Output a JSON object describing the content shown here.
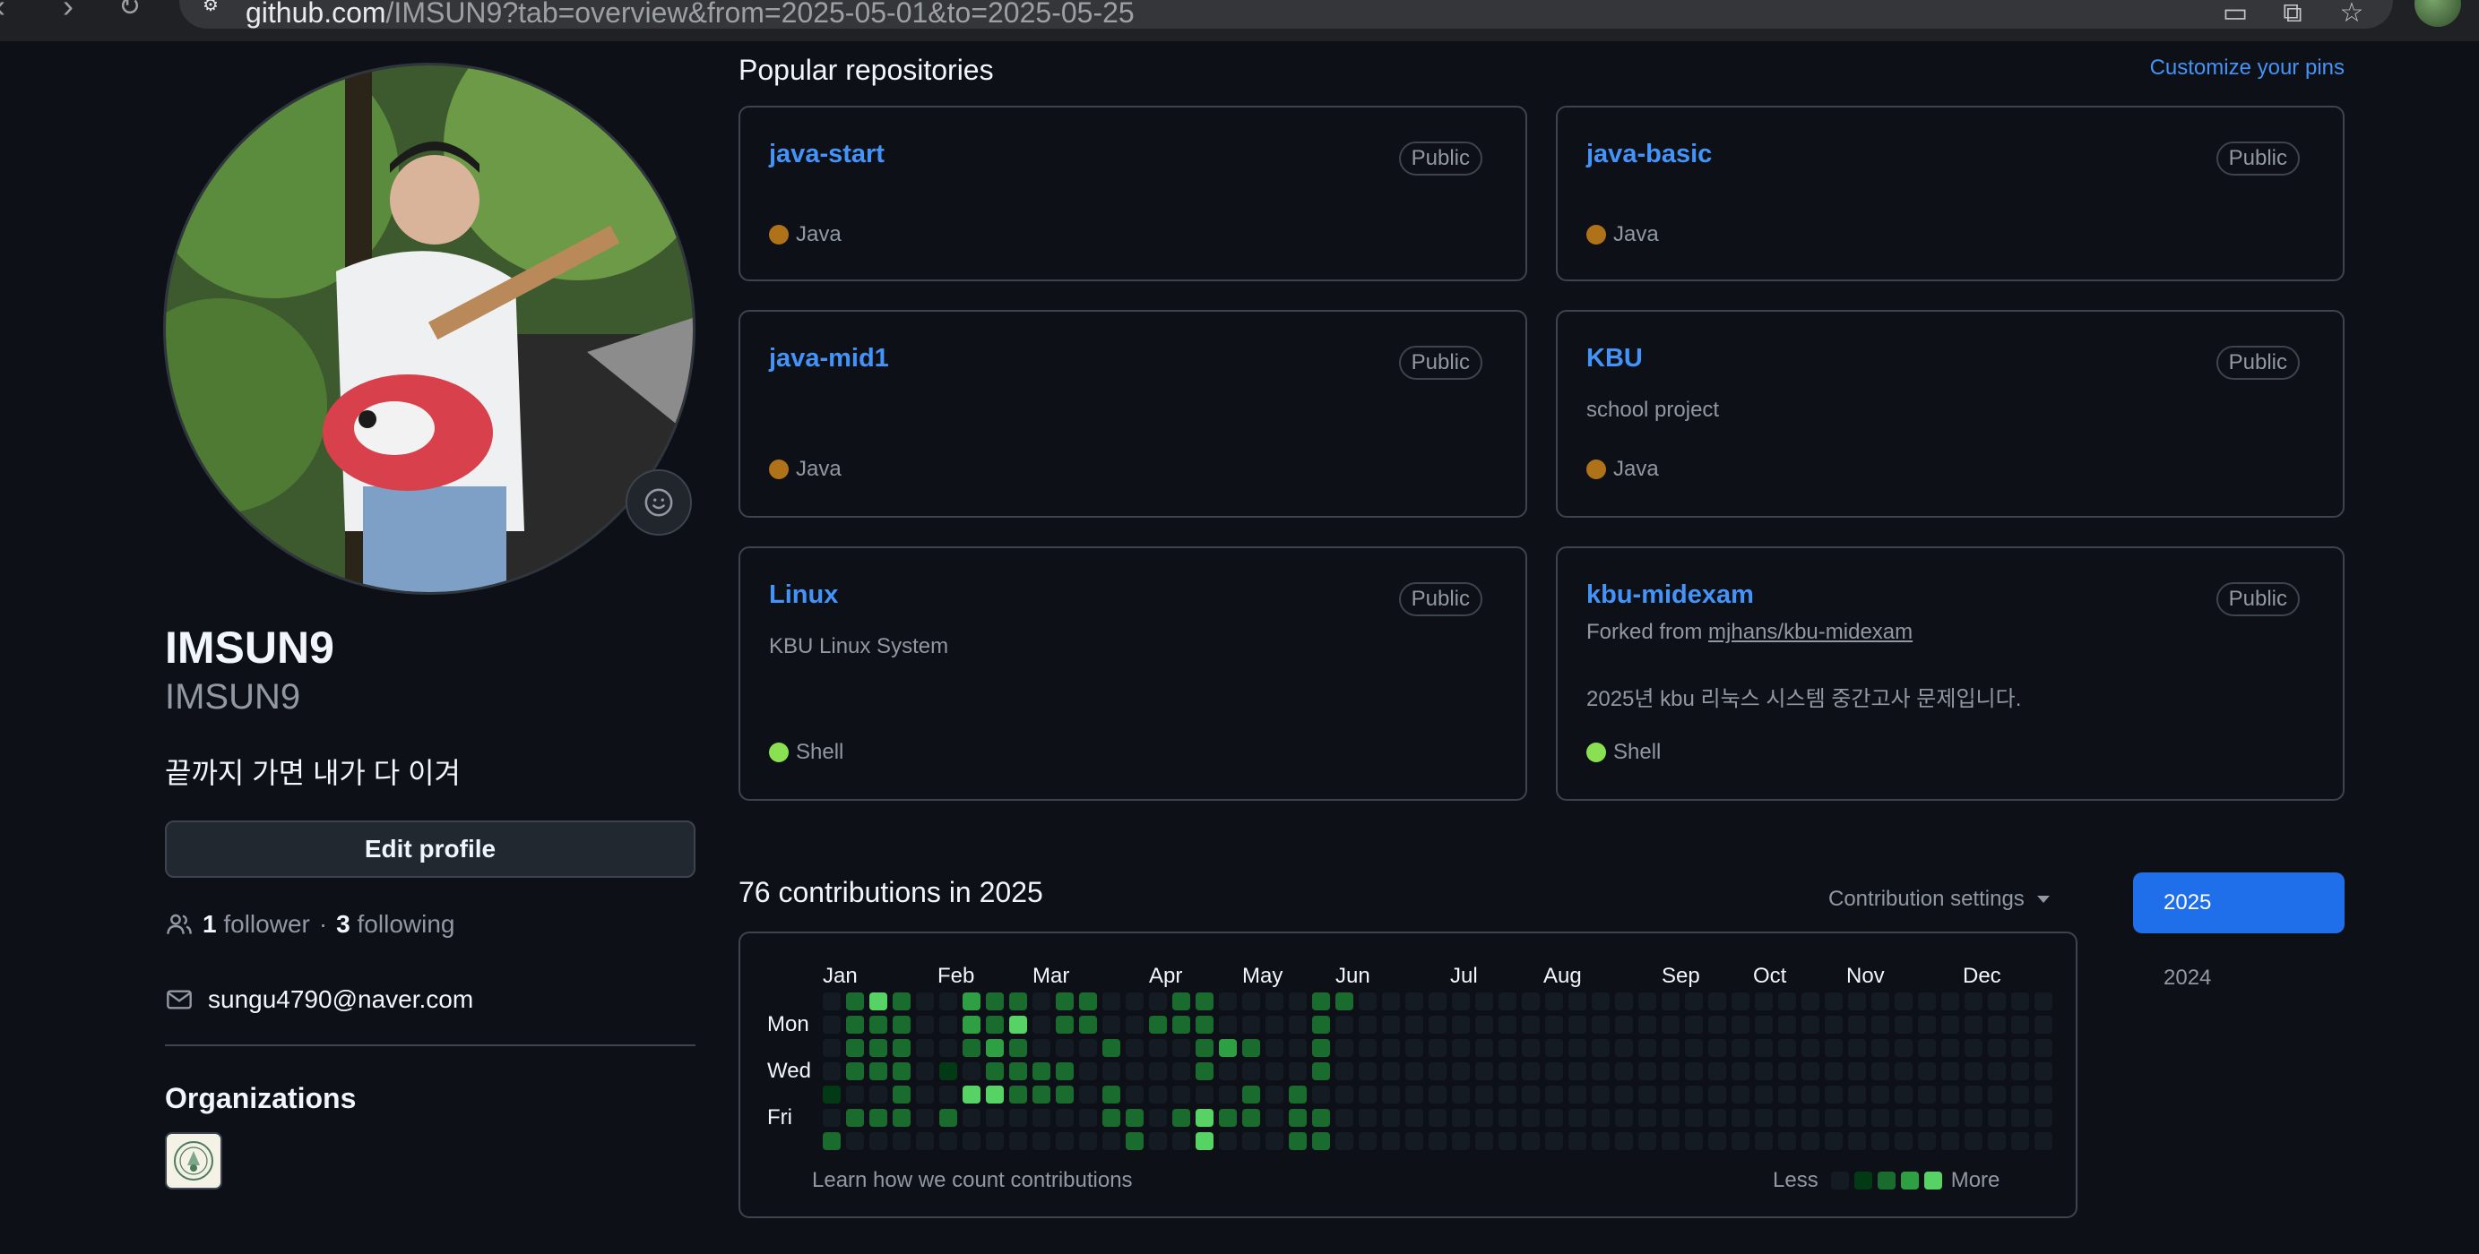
{
  "browser": {
    "url_host": "github.com",
    "url_path": "/IMSUN9?tab=overview&from=2025-05-01&to=2025-05-25"
  },
  "profile": {
    "name": "IMSUN9",
    "login": "IMSUN9",
    "bio": "끝까지 가면 내가 다 이겨",
    "edit_label": "Edit profile",
    "followers_count": "1",
    "followers_label": "follower",
    "separator": "·",
    "following_count": "3",
    "following_label": "following",
    "email": "sungu4790@naver.com",
    "organizations_title": "Organizations"
  },
  "popular": {
    "title": "Popular repositories",
    "customize_label": "Customize your pins",
    "repos": [
      {
        "name": "java-start",
        "visibility": "Public",
        "description": "",
        "language": "Java",
        "lang_color": "#b07219"
      },
      {
        "name": "java-basic",
        "visibility": "Public",
        "description": "",
        "language": "Java",
        "lang_color": "#b07219"
      },
      {
        "name": "java-mid1",
        "visibility": "Public",
        "description": "",
        "language": "Java",
        "lang_color": "#b07219"
      },
      {
        "name": "KBU",
        "visibility": "Public",
        "description": "school project",
        "language": "Java",
        "lang_color": "#b07219"
      },
      {
        "name": "Linux",
        "visibility": "Public",
        "description": "KBU Linux System",
        "language": "Shell",
        "lang_color": "#89e051"
      },
      {
        "name": "kbu-midexam",
        "visibility": "Public",
        "fork_prefix": "Forked from",
        "fork_source": "mjhans/kbu-midexam",
        "description": "2025년 kbu 리눅스 시스템 중간고사 문제입니다.",
        "language": "Shell",
        "lang_color": "#89e051"
      }
    ]
  },
  "contributions": {
    "title": "76 contributions in 2025",
    "settings_label": "Contribution settings",
    "years": [
      "2025",
      "2024"
    ],
    "months": [
      "Jan",
      "Feb",
      "Mar",
      "Apr",
      "May",
      "Jun",
      "Jul",
      "Aug",
      "Sep",
      "Oct",
      "Nov",
      "Dec"
    ],
    "day_labels": [
      "Mon",
      "Wed",
      "Fri"
    ],
    "learn_label": "Learn how we count contributions",
    "less_label": "Less",
    "more_label": "More",
    "level_colors": [
      "#151b23",
      "#033a16",
      "#196c2e",
      "#2ea043",
      "#56d364"
    ],
    "weeks": [
      [
        0,
        0,
        0,
        0,
        1,
        0,
        2
      ],
      [
        2,
        2,
        2,
        2,
        0,
        2,
        0
      ],
      [
        4,
        2,
        2,
        2,
        0,
        2,
        0
      ],
      [
        2,
        2,
        2,
        2,
        2,
        2,
        0
      ],
      [
        0,
        0,
        0,
        0,
        0,
        0,
        0
      ],
      [
        0,
        0,
        0,
        1,
        0,
        2,
        0
      ],
      [
        3,
        3,
        2,
        0,
        4,
        0,
        0
      ],
      [
        2,
        2,
        3,
        2,
        4,
        0,
        0
      ],
      [
        2,
        4,
        2,
        2,
        2,
        0,
        0
      ],
      [
        0,
        0,
        0,
        2,
        2,
        0,
        0
      ],
      [
        2,
        2,
        0,
        2,
        2,
        0,
        0
      ],
      [
        2,
        2,
        0,
        0,
        0,
        0,
        0
      ],
      [
        0,
        0,
        2,
        0,
        2,
        2,
        0
      ],
      [
        0,
        0,
        0,
        0,
        0,
        2,
        2
      ],
      [
        0,
        2,
        0,
        0,
        0,
        0,
        0
      ],
      [
        2,
        2,
        0,
        0,
        0,
        2,
        0
      ],
      [
        2,
        2,
        2,
        2,
        0,
        4,
        4
      ],
      [
        0,
        0,
        3,
        0,
        0,
        2,
        0
      ],
      [
        0,
        0,
        2,
        0,
        2,
        2,
        0
      ],
      [
        0,
        0,
        0,
        0,
        0,
        0,
        0
      ],
      [
        0,
        0,
        0,
        0,
        2,
        2,
        2
      ],
      [
        2,
        2,
        2,
        2,
        0,
        2,
        2
      ],
      [
        2,
        0,
        0,
        0,
        0,
        0,
        0
      ],
      [
        0,
        0,
        0,
        0,
        0,
        0,
        0
      ]
    ]
  }
}
